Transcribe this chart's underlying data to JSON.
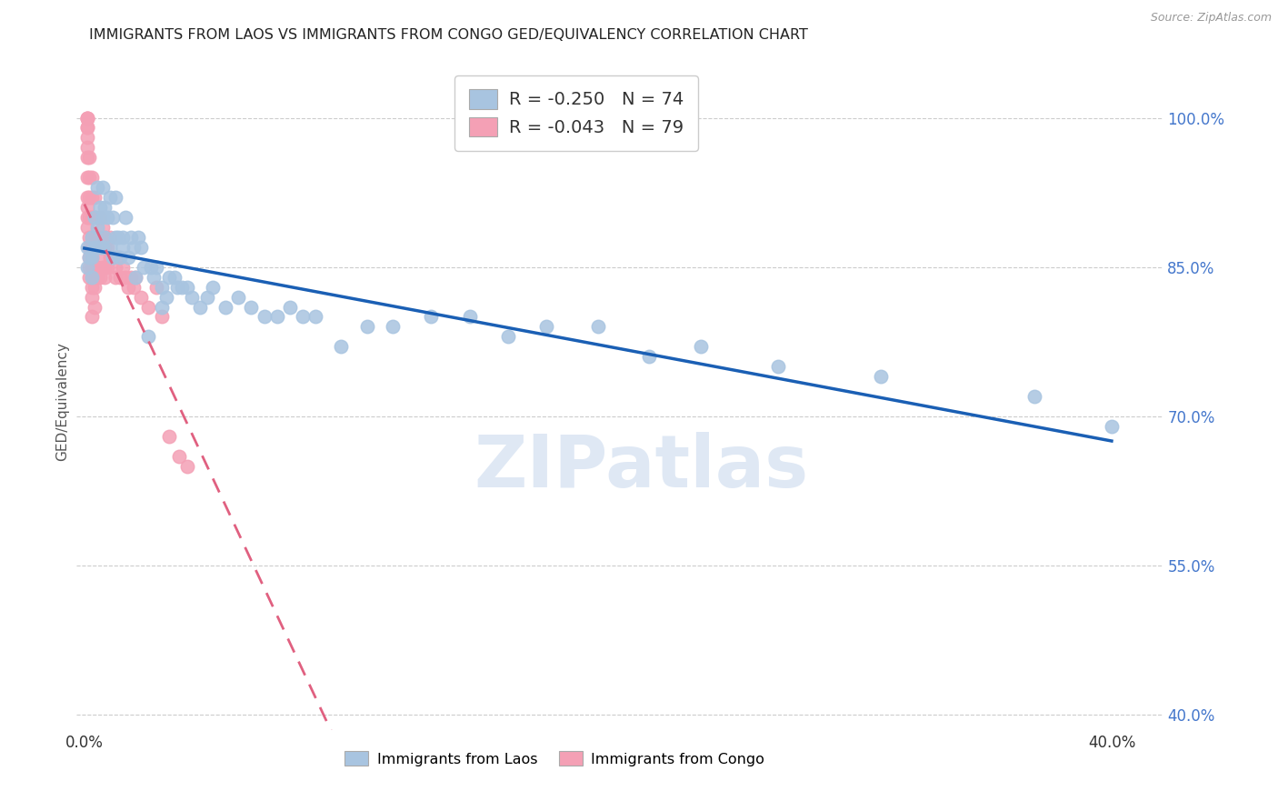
{
  "title": "IMMIGRANTS FROM LAOS VS IMMIGRANTS FROM CONGO GED/EQUIVALENCY CORRELATION CHART",
  "source": "Source: ZipAtlas.com",
  "ylabel": "GED/Equivalency",
  "ytick_labels": [
    "100.0%",
    "85.0%",
    "70.0%",
    "55.0%",
    "40.0%"
  ],
  "ytick_values": [
    1.0,
    0.85,
    0.7,
    0.55,
    0.4
  ],
  "xlim": [
    -0.003,
    0.42
  ],
  "ylim": [
    0.385,
    1.045
  ],
  "laos_color": "#a8c4e0",
  "laos_line_color": "#1a5fb4",
  "congo_color": "#f4a0b5",
  "congo_line_color": "#e06080",
  "laos_R": -0.25,
  "laos_N": 74,
  "congo_R": -0.043,
  "congo_N": 79,
  "watermark": "ZIPatlas",
  "background_color": "#ffffff",
  "grid_color": "#cccccc",
  "laos_x": [
    0.001,
    0.001,
    0.002,
    0.003,
    0.003,
    0.003,
    0.004,
    0.004,
    0.005,
    0.005,
    0.006,
    0.006,
    0.007,
    0.007,
    0.007,
    0.008,
    0.008,
    0.009,
    0.01,
    0.01,
    0.011,
    0.011,
    0.012,
    0.012,
    0.013,
    0.014,
    0.015,
    0.015,
    0.016,
    0.017,
    0.018,
    0.019,
    0.02,
    0.021,
    0.022,
    0.023,
    0.025,
    0.026,
    0.027,
    0.028,
    0.03,
    0.03,
    0.032,
    0.033,
    0.035,
    0.036,
    0.038,
    0.04,
    0.042,
    0.045,
    0.048,
    0.05,
    0.055,
    0.06,
    0.065,
    0.07,
    0.075,
    0.08,
    0.085,
    0.09,
    0.1,
    0.11,
    0.12,
    0.135,
    0.15,
    0.165,
    0.18,
    0.2,
    0.22,
    0.24,
    0.27,
    0.31,
    0.37,
    0.4
  ],
  "laos_y": [
    0.87,
    0.85,
    0.86,
    0.88,
    0.86,
    0.84,
    0.9,
    0.87,
    0.93,
    0.89,
    0.91,
    0.87,
    0.93,
    0.9,
    0.87,
    0.91,
    0.88,
    0.9,
    0.92,
    0.87,
    0.9,
    0.86,
    0.92,
    0.88,
    0.88,
    0.86,
    0.88,
    0.87,
    0.9,
    0.86,
    0.88,
    0.87,
    0.84,
    0.88,
    0.87,
    0.85,
    0.78,
    0.85,
    0.84,
    0.85,
    0.83,
    0.81,
    0.82,
    0.84,
    0.84,
    0.83,
    0.83,
    0.83,
    0.82,
    0.81,
    0.82,
    0.83,
    0.81,
    0.82,
    0.81,
    0.8,
    0.8,
    0.81,
    0.8,
    0.8,
    0.77,
    0.79,
    0.79,
    0.8,
    0.8,
    0.78,
    0.79,
    0.79,
    0.76,
    0.77,
    0.75,
    0.74,
    0.72,
    0.69
  ],
  "congo_x": [
    0.001,
    0.001,
    0.001,
    0.001,
    0.001,
    0.001,
    0.001,
    0.001,
    0.001,
    0.001,
    0.001,
    0.001,
    0.001,
    0.002,
    0.002,
    0.002,
    0.002,
    0.002,
    0.002,
    0.002,
    0.002,
    0.002,
    0.003,
    0.003,
    0.003,
    0.003,
    0.003,
    0.003,
    0.003,
    0.003,
    0.003,
    0.003,
    0.003,
    0.004,
    0.004,
    0.004,
    0.004,
    0.004,
    0.004,
    0.004,
    0.004,
    0.005,
    0.005,
    0.005,
    0.005,
    0.005,
    0.006,
    0.006,
    0.006,
    0.006,
    0.007,
    0.007,
    0.007,
    0.008,
    0.008,
    0.008,
    0.008,
    0.009,
    0.009,
    0.01,
    0.01,
    0.011,
    0.012,
    0.012,
    0.013,
    0.014,
    0.015,
    0.016,
    0.017,
    0.018,
    0.019,
    0.02,
    0.022,
    0.025,
    0.028,
    0.03,
    0.033,
    0.037,
    0.04
  ],
  "congo_y": [
    1.0,
    1.0,
    1.0,
    0.99,
    0.99,
    0.98,
    0.97,
    0.96,
    0.94,
    0.92,
    0.91,
    0.9,
    0.89,
    0.96,
    0.94,
    0.92,
    0.9,
    0.88,
    0.87,
    0.86,
    0.85,
    0.84,
    0.94,
    0.92,
    0.9,
    0.88,
    0.87,
    0.86,
    0.85,
    0.84,
    0.83,
    0.82,
    0.8,
    0.92,
    0.9,
    0.88,
    0.87,
    0.85,
    0.84,
    0.83,
    0.81,
    0.9,
    0.88,
    0.87,
    0.85,
    0.84,
    0.9,
    0.88,
    0.86,
    0.84,
    0.89,
    0.87,
    0.85,
    0.88,
    0.87,
    0.85,
    0.84,
    0.87,
    0.85,
    0.88,
    0.86,
    0.86,
    0.85,
    0.84,
    0.86,
    0.84,
    0.85,
    0.84,
    0.83,
    0.84,
    0.83,
    0.84,
    0.82,
    0.81,
    0.83,
    0.8,
    0.68,
    0.66,
    0.65
  ]
}
